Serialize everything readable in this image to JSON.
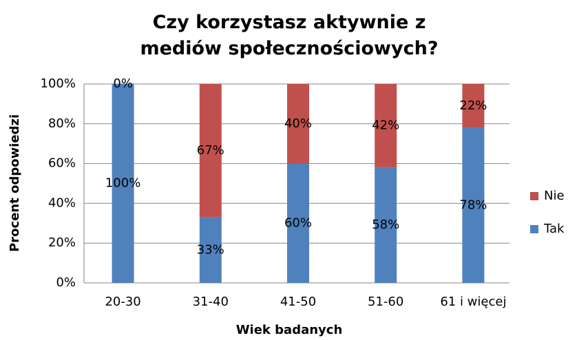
{
  "chart_data": {
    "type": "stacked_bar",
    "title": "Czy korzystasz aktywnie z mediów społecznościowych?",
    "x_label": "Wiek badanych",
    "y_label": "Procent odpowiedzi",
    "categories": [
      "20-30",
      "31-40",
      "41-50",
      "51-60",
      "61 i więcej"
    ],
    "series": [
      {
        "name": "Tak",
        "color": "#4f81bd",
        "values": [
          100,
          33,
          60,
          58,
          78
        ],
        "value_labels": [
          "100%",
          "33%",
          "60%",
          "58%",
          "78%"
        ]
      },
      {
        "name": "Nie",
        "color": "#c0504d",
        "values": [
          0,
          67,
          40,
          42,
          22
        ],
        "value_labels": [
          "0%",
          "67%",
          "40%",
          "42%",
          "22%"
        ]
      }
    ],
    "ylim": [
      0,
      100
    ],
    "yticks": [
      {
        "value": 0,
        "label": "0%"
      },
      {
        "value": 20,
        "label": "20%"
      },
      {
        "value": 40,
        "label": "40%"
      },
      {
        "value": 60,
        "label": "60%"
      },
      {
        "value": 80,
        "label": "80%"
      },
      {
        "value": 100,
        "label": "100%"
      }
    ],
    "grid": true,
    "legend": "right"
  }
}
